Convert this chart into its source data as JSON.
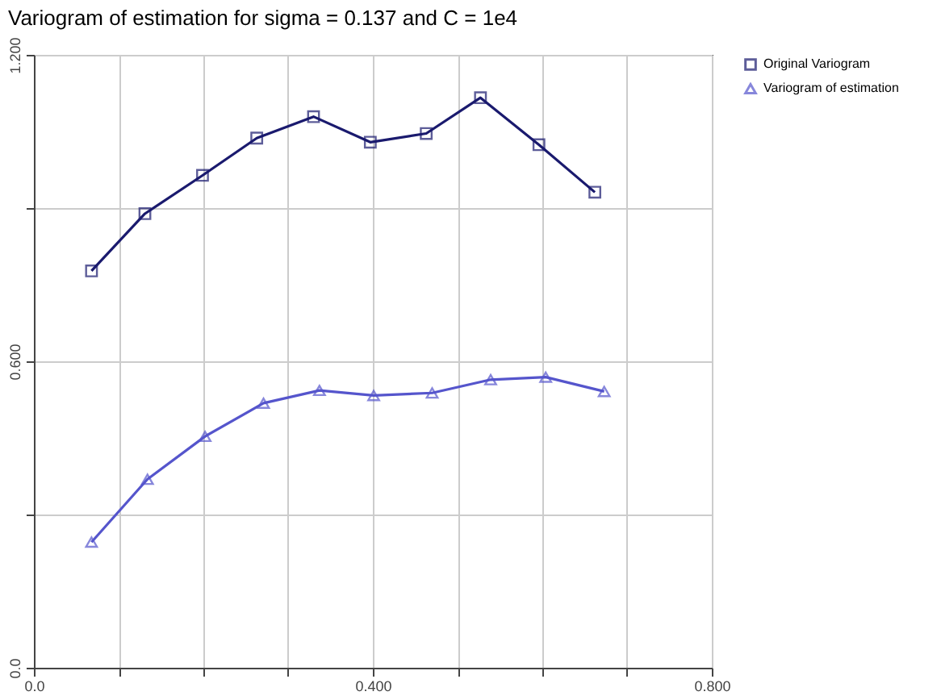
{
  "chart_data": {
    "type": "line",
    "title": "Variogram of estimation for sigma = 0.137 and C = 1e4",
    "series": [
      {
        "name": "Original Variogram",
        "color": "#1a1a6e",
        "marker": "square",
        "x": [
          0.068,
          0.131,
          0.199,
          0.263,
          0.33,
          0.397,
          0.463,
          0.527,
          0.596,
          0.662
        ],
        "values": [
          0.777,
          0.889,
          0.964,
          1.037,
          1.079,
          1.029,
          1.046,
          1.116,
          1.024,
          0.931
        ]
      },
      {
        "name": "Variogram of estimation",
        "color": "#5555cc",
        "marker": "triangle",
        "x": [
          0.068,
          0.134,
          0.202,
          0.271,
          0.337,
          0.401,
          0.47,
          0.539,
          0.604,
          0.673
        ],
        "values": [
          0.246,
          0.369,
          0.453,
          0.518,
          0.543,
          0.533,
          0.538,
          0.564,
          0.569,
          0.541
        ]
      }
    ],
    "xlim": [
      0.0,
      0.8
    ],
    "ylim": [
      0.0,
      1.2
    ],
    "xticks": [
      {
        "value": 0.0,
        "label": "0.0"
      },
      {
        "value": 0.1,
        "label": null
      },
      {
        "value": 0.2,
        "label": null
      },
      {
        "value": 0.3,
        "label": null
      },
      {
        "value": 0.4,
        "label": "0.400"
      },
      {
        "value": 0.5,
        "label": null
      },
      {
        "value": 0.6,
        "label": null
      },
      {
        "value": 0.7,
        "label": null
      },
      {
        "value": 0.8,
        "label": "0.800"
      }
    ],
    "yticks": [
      {
        "value": 0.0,
        "label": "0.0"
      },
      {
        "value": 0.3,
        "label": null
      },
      {
        "value": 0.6,
        "label": "0.600"
      },
      {
        "value": 0.9,
        "label": null
      },
      {
        "value": 1.2,
        "label": "1.200"
      }
    ],
    "grid": true,
    "legend": "top right",
    "line_style": "solid"
  }
}
